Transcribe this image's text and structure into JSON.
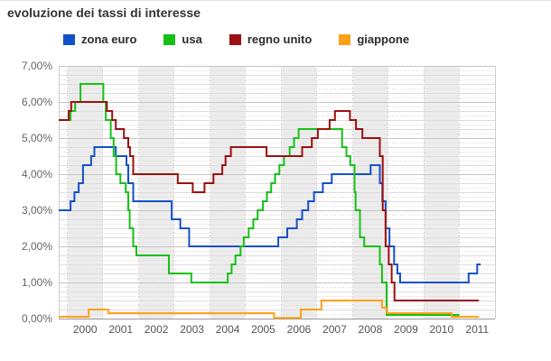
{
  "title": "evoluzione dei tassi di interesse",
  "legend": [
    {
      "id": "zona-euro",
      "label": "zona euro",
      "color": "#1451C8"
    },
    {
      "id": "usa",
      "label": "usa",
      "color": "#16C116"
    },
    {
      "id": "regno-unito",
      "label": "regno unito",
      "color": "#9B1111"
    },
    {
      "id": "giappone",
      "label": "giappone",
      "color": "#FFA019"
    }
  ],
  "colors": {
    "band_shade": "#ececec",
    "grid_major": "#c6c6c6",
    "grid_minor": "#dddddd",
    "grid_dotted": "#e6d2d2",
    "axis_line": "#999999",
    "plot_border": "#cccccc",
    "y_tick_text": "#666666",
    "x_tick_text": "#555555",
    "title_text": "#333333"
  },
  "chart_data": {
    "type": "line",
    "step": true,
    "title": "evoluzione dei tassi di interesse",
    "xlabel": "",
    "ylabel": "",
    "x_axis": {
      "ticks": [
        "2000",
        "2001",
        "2002",
        "2003",
        "2004",
        "2005",
        "2006",
        "2007",
        "2008",
        "2009",
        "2010",
        "2011"
      ],
      "tick_years": [
        2000,
        2001,
        2002,
        2003,
        2004,
        2005,
        2006,
        2007,
        2008,
        2009,
        2010,
        2011
      ],
      "range": [
        1999.76,
        2012.0
      ],
      "shaded_year_bands": "even",
      "grid": "dotted-year-boundaries"
    },
    "y_axis": {
      "labels": [
        "7,00%",
        "6,00%",
        "5,00%",
        "4,00%",
        "3,00%",
        "2,00%",
        "1,00%",
        "0,00%"
      ],
      "values": [
        7,
        6,
        5,
        4,
        3,
        2,
        1,
        0
      ],
      "range": [
        0,
        7
      ],
      "minor_step": 0.25,
      "unit": "percent"
    },
    "legend_position": "top",
    "series": [
      {
        "name": "zona euro",
        "color": "#1451C8",
        "end": 2011.6,
        "points": [
          [
            1999.76,
            3.0
          ],
          [
            2000.09,
            3.25
          ],
          [
            2000.2,
            3.5
          ],
          [
            2000.32,
            3.75
          ],
          [
            2000.44,
            4.25
          ],
          [
            2000.67,
            4.5
          ],
          [
            2000.76,
            4.75
          ],
          [
            2001.36,
            4.5
          ],
          [
            2001.66,
            4.25
          ],
          [
            2001.71,
            3.75
          ],
          [
            2001.85,
            3.25
          ],
          [
            2002.93,
            2.75
          ],
          [
            2003.17,
            2.5
          ],
          [
            2003.42,
            2.0
          ],
          [
            2005.92,
            2.25
          ],
          [
            2006.17,
            2.5
          ],
          [
            2006.44,
            2.75
          ],
          [
            2006.59,
            3.0
          ],
          [
            2006.76,
            3.25
          ],
          [
            2006.92,
            3.5
          ],
          [
            2007.17,
            3.75
          ],
          [
            2007.42,
            4.0
          ],
          [
            2008.51,
            4.25
          ],
          [
            2008.77,
            3.75
          ],
          [
            2008.84,
            3.25
          ],
          [
            2008.93,
            2.5
          ],
          [
            2009.04,
            2.0
          ],
          [
            2009.17,
            1.5
          ],
          [
            2009.26,
            1.25
          ],
          [
            2009.34,
            1.0
          ],
          [
            2011.26,
            1.25
          ],
          [
            2011.5,
            1.5
          ]
        ]
      },
      {
        "name": "usa",
        "color": "#16C116",
        "end": 2011.0,
        "points": [
          [
            1999.76,
            5.5
          ],
          [
            2000.09,
            5.75
          ],
          [
            2000.22,
            6.0
          ],
          [
            2000.37,
            6.5
          ],
          [
            2001.01,
            6.0
          ],
          [
            2001.08,
            5.5
          ],
          [
            2001.22,
            5.0
          ],
          [
            2001.3,
            4.5
          ],
          [
            2001.37,
            4.0
          ],
          [
            2001.49,
            3.75
          ],
          [
            2001.64,
            3.5
          ],
          [
            2001.71,
            3.0
          ],
          [
            2001.75,
            2.5
          ],
          [
            2001.85,
            2.0
          ],
          [
            2001.94,
            1.75
          ],
          [
            2002.85,
            1.25
          ],
          [
            2003.48,
            1.0
          ],
          [
            2004.5,
            1.25
          ],
          [
            2004.61,
            1.5
          ],
          [
            2004.72,
            1.75
          ],
          [
            2004.86,
            2.0
          ],
          [
            2004.95,
            2.25
          ],
          [
            2005.09,
            2.5
          ],
          [
            2005.22,
            2.75
          ],
          [
            2005.34,
            3.0
          ],
          [
            2005.49,
            3.25
          ],
          [
            2005.6,
            3.5
          ],
          [
            2005.72,
            3.75
          ],
          [
            2005.83,
            4.0
          ],
          [
            2005.95,
            4.25
          ],
          [
            2006.08,
            4.5
          ],
          [
            2006.24,
            4.75
          ],
          [
            2006.36,
            5.0
          ],
          [
            2006.49,
            5.25
          ],
          [
            2007.71,
            4.75
          ],
          [
            2007.83,
            4.5
          ],
          [
            2007.94,
            4.25
          ],
          [
            2008.06,
            3.5
          ],
          [
            2008.09,
            3.0
          ],
          [
            2008.21,
            2.25
          ],
          [
            2008.33,
            2.0
          ],
          [
            2008.77,
            1.5
          ],
          [
            2008.83,
            1.0
          ],
          [
            2008.96,
            0.1
          ]
        ]
      },
      {
        "name": "regno unito",
        "color": "#9B1111",
        "end": 2011.55,
        "points": [
          [
            1999.76,
            5.5
          ],
          [
            2000.04,
            5.75
          ],
          [
            2000.11,
            6.0
          ],
          [
            2001.11,
            5.75
          ],
          [
            2001.26,
            5.5
          ],
          [
            2001.36,
            5.25
          ],
          [
            2001.59,
            5.0
          ],
          [
            2001.71,
            4.75
          ],
          [
            2001.76,
            4.5
          ],
          [
            2001.85,
            4.0
          ],
          [
            2003.1,
            3.75
          ],
          [
            2003.52,
            3.5
          ],
          [
            2003.85,
            3.75
          ],
          [
            2004.1,
            4.0
          ],
          [
            2004.35,
            4.25
          ],
          [
            2004.44,
            4.5
          ],
          [
            2004.59,
            4.75
          ],
          [
            2005.59,
            4.5
          ],
          [
            2006.59,
            4.75
          ],
          [
            2006.86,
            5.0
          ],
          [
            2007.03,
            5.25
          ],
          [
            2007.36,
            5.5
          ],
          [
            2007.51,
            5.75
          ],
          [
            2007.93,
            5.5
          ],
          [
            2008.1,
            5.25
          ],
          [
            2008.28,
            5.0
          ],
          [
            2008.77,
            4.5
          ],
          [
            2008.85,
            3.0
          ],
          [
            2008.93,
            2.0
          ],
          [
            2009.02,
            1.5
          ],
          [
            2009.1,
            1.0
          ],
          [
            2009.18,
            0.5
          ]
        ]
      },
      {
        "name": "giappone",
        "color": "#FFA019",
        "end": 2011.55,
        "points": [
          [
            1999.76,
            0.05
          ],
          [
            2000.6,
            0.25
          ],
          [
            2001.15,
            0.15
          ],
          [
            2005.8,
            0.02
          ],
          [
            2006.55,
            0.25
          ],
          [
            2007.13,
            0.5
          ],
          [
            2008.83,
            0.3
          ],
          [
            2008.97,
            0.15
          ],
          [
            2010.78,
            0.05
          ]
        ]
      }
    ]
  }
}
